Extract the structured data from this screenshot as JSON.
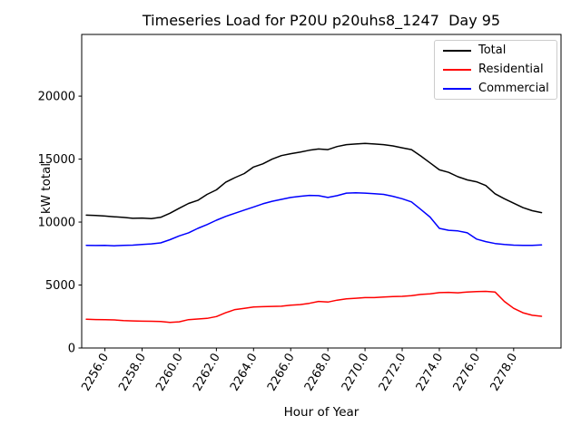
{
  "chart_data": {
    "type": "line",
    "title": "Timeseries Load for P20U p20uhs8_1247  Day 95",
    "xlabel": "Hour of Year",
    "ylabel": "kW total",
    "grid": false,
    "legend_position": "upper right",
    "xlim": [
      2254.75,
      2280.55
    ],
    "ylim": [
      0,
      24900
    ],
    "xticks": [
      2256,
      2258,
      2260,
      2262,
      2264,
      2266,
      2268,
      2270,
      2272,
      2274,
      2276,
      2278
    ],
    "xtick_labels": [
      "2256.0",
      "2258.0",
      "2260.0",
      "2262.0",
      "2264.0",
      "2266.0",
      "2268.0",
      "2270.0",
      "2272.0",
      "2274.0",
      "2276.0",
      "2278.0"
    ],
    "yticks": [
      0,
      5000,
      10000,
      15000,
      20000
    ],
    "ytick_labels": [
      "0",
      "5000",
      "10000",
      "15000",
      "20000"
    ],
    "x": [
      2255.0,
      2255.5,
      2256.0,
      2256.5,
      2257.0,
      2257.5,
      2258.0,
      2258.5,
      2259.0,
      2259.5,
      2260.0,
      2260.5,
      2261.0,
      2261.5,
      2262.0,
      2262.5,
      2263.0,
      2263.5,
      2264.0,
      2264.5,
      2265.0,
      2265.5,
      2266.0,
      2266.5,
      2267.0,
      2267.5,
      2268.0,
      2268.5,
      2269.0,
      2269.5,
      2270.0,
      2270.5,
      2271.0,
      2271.5,
      2272.0,
      2272.5,
      2273.0,
      2273.5,
      2274.0,
      2274.5,
      2275.0,
      2275.5,
      2276.0,
      2276.5,
      2277.0,
      2277.5,
      2278.0,
      2278.5,
      2279.0,
      2279.5
    ],
    "series": [
      {
        "name": "Total",
        "color": "#000000",
        "values": [
          10550,
          10520,
          10480,
          10420,
          10370,
          10300,
          10320,
          10280,
          10380,
          10700,
          11100,
          11480,
          11720,
          12200,
          12560,
          13160,
          13530,
          13850,
          14370,
          14620,
          15000,
          15280,
          15430,
          15550,
          15700,
          15800,
          15750,
          16000,
          16150,
          16200,
          16250,
          16200,
          16150,
          16050,
          15900,
          15750,
          15250,
          14700,
          14150,
          13950,
          13600,
          13350,
          13200,
          12900,
          12250,
          11850,
          11500,
          11150,
          10900,
          10750
        ]
      },
      {
        "name": "Residential",
        "color": "#ff0000",
        "values": [
          2280,
          2260,
          2250,
          2230,
          2180,
          2150,
          2130,
          2120,
          2100,
          2030,
          2080,
          2250,
          2300,
          2350,
          2500,
          2800,
          3050,
          3150,
          3250,
          3280,
          3300,
          3320,
          3400,
          3450,
          3550,
          3700,
          3650,
          3800,
          3900,
          3950,
          4000,
          4000,
          4050,
          4080,
          4100,
          4150,
          4250,
          4300,
          4400,
          4420,
          4380,
          4450,
          4480,
          4500,
          4450,
          3700,
          3150,
          2800,
          2600,
          2520
        ]
      },
      {
        "name": "Commercial",
        "color": "#0000ff",
        "values": [
          8150,
          8140,
          8150,
          8120,
          8150,
          8170,
          8220,
          8270,
          8350,
          8600,
          8900,
          9150,
          9500,
          9800,
          10150,
          10450,
          10700,
          10950,
          11200,
          11450,
          11650,
          11800,
          11950,
          12050,
          12120,
          12100,
          11950,
          12100,
          12300,
          12320,
          12300,
          12250,
          12200,
          12050,
          11850,
          11600,
          11000,
          10400,
          9500,
          9350,
          9300,
          9150,
          8650,
          8450,
          8300,
          8220,
          8170,
          8150,
          8150,
          8180
        ]
      }
    ]
  }
}
